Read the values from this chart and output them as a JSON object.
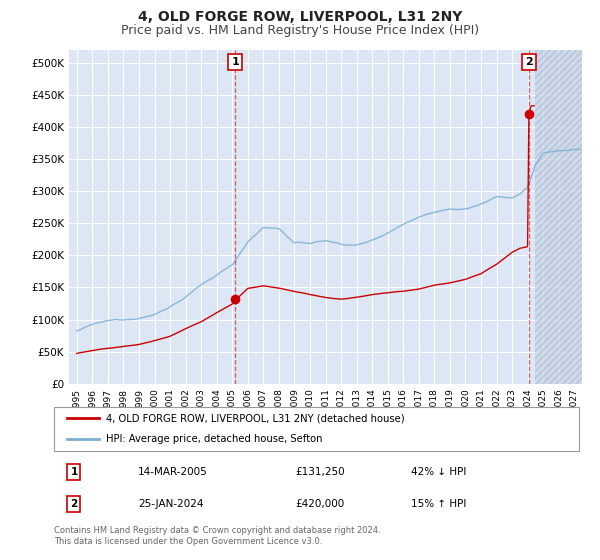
{
  "title": "4, OLD FORGE ROW, LIVERPOOL, L31 2NY",
  "subtitle": "Price paid vs. HM Land Registry's House Price Index (HPI)",
  "xlim_left": 1994.5,
  "xlim_right": 2027.5,
  "ylim_bottom": 0,
  "ylim_top": 520000,
  "yticks": [
    0,
    50000,
    100000,
    150000,
    200000,
    250000,
    300000,
    350000,
    400000,
    450000,
    500000
  ],
  "ytick_labels": [
    "£0",
    "£50K",
    "£100K",
    "£150K",
    "£200K",
    "£250K",
    "£300K",
    "£350K",
    "£400K",
    "£450K",
    "£500K"
  ],
  "xticks": [
    1995,
    1996,
    1997,
    1998,
    1999,
    2000,
    2001,
    2002,
    2003,
    2004,
    2005,
    2006,
    2007,
    2008,
    2009,
    2010,
    2011,
    2012,
    2013,
    2014,
    2015,
    2016,
    2017,
    2018,
    2019,
    2020,
    2021,
    2022,
    2023,
    2024,
    2025,
    2026,
    2027
  ],
  "background_color": "#ffffff",
  "plot_bg_color": "#dce6f5",
  "hatch_bg_color": "#c8d4e8",
  "grid_color": "#ffffff",
  "hpi_color": "#7bafd4",
  "price_color": "#cc0000",
  "vline_color": "#cc0000",
  "marker1_date": 2005.2,
  "marker1_price": 131250,
  "marker2_date": 2024.07,
  "marker2_price": 420000,
  "hatch_start": 2024.5,
  "legend_label_price": "4, OLD FORGE ROW, LIVERPOOL, L31 2NY (detached house)",
  "legend_label_hpi": "HPI: Average price, detached house, Sefton",
  "table_row1": [
    "1",
    "14-MAR-2005",
    "£131,250",
    "42% ↓ HPI"
  ],
  "table_row2": [
    "2",
    "25-JAN-2024",
    "£420,000",
    "15% ↑ HPI"
  ],
  "footer": "Contains HM Land Registry data © Crown copyright and database right 2024.\nThis data is licensed under the Open Government Licence v3.0.",
  "title_fontsize": 10,
  "subtitle_fontsize": 9
}
